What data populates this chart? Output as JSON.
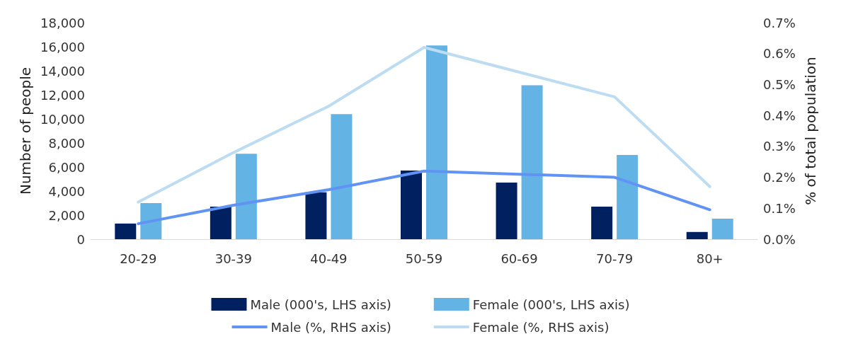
{
  "chart_data": {
    "type": "bar",
    "categories": [
      "20-29",
      "30-39",
      "40-49",
      "50-59",
      "60-69",
      "70-79",
      "80+"
    ],
    "ylabel": "Number of people",
    "y2label": "% of total population",
    "ylim": [
      0,
      18000
    ],
    "yticks": [
      {
        "value": 0,
        "label": "0"
      },
      {
        "value": 2000,
        "label": "2,000"
      },
      {
        "value": 4000,
        "label": "4,000"
      },
      {
        "value": 6000,
        "label": "6,000"
      },
      {
        "value": 8000,
        "label": "8,000"
      },
      {
        "value": 10000,
        "label": "10,000"
      },
      {
        "value": 12000,
        "label": "12,000"
      },
      {
        "value": 14000,
        "label": "14,000"
      },
      {
        "value": 16000,
        "label": "16,000"
      },
      {
        "value": 18000,
        "label": "18,000"
      }
    ],
    "y2lim": [
      0,
      0.7
    ],
    "y2ticks": [
      {
        "value": 0,
        "label": "0.0%"
      },
      {
        "value": 0.1,
        "label": "0.1%"
      },
      {
        "value": 0.2,
        "label": "0.2%"
      },
      {
        "value": 0.3,
        "label": "0.3%"
      },
      {
        "value": 0.4,
        "label": "0.4%"
      },
      {
        "value": 0.5,
        "label": "0.5%"
      },
      {
        "value": 0.6,
        "label": "0.6%"
      },
      {
        "value": 0.7,
        "label": "0.7%"
      }
    ],
    "series": [
      {
        "name": "Male (000's, LHS axis)",
        "color": "#002060",
        "values": [
          1300,
          2700,
          3900,
          5700,
          4700,
          2700,
          600
        ]
      },
      {
        "name": "Female (000's, LHS axis)",
        "color": "#63b4e4",
        "values": [
          3000,
          7100,
          10400,
          16100,
          12800,
          7000,
          1700
        ]
      },
      {
        "name": "Male (%, RHS axis)",
        "type": "line",
        "axis": "y2",
        "color": "#6193f5",
        "values": [
          0.05,
          0.11,
          0.16,
          0.22,
          0.21,
          0.2,
          0.095
        ]
      },
      {
        "name": "Female (%, RHS axis)",
        "type": "line",
        "axis": "y2",
        "color": "#bddcf2",
        "values": [
          0.12,
          0.28,
          0.43,
          0.62,
          0.54,
          0.46,
          0.17
        ]
      }
    ],
    "legend": "bottom",
    "grid": false,
    "marker": "none",
    "line_style": "solid"
  }
}
